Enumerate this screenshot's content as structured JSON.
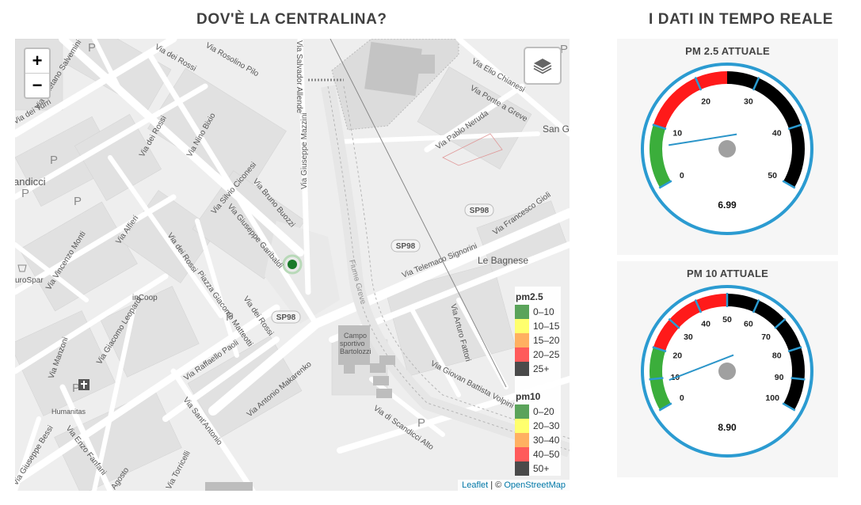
{
  "headings": {
    "map": "DOV'È LA CENTRALINA?",
    "gauges": "I DATI IN TEMPO REALE"
  },
  "map": {
    "zoom_in": "+",
    "zoom_out": "−",
    "attribution": {
      "leaflet": "Leaflet",
      "sep": " | © ",
      "osm": "OpenStreetMap"
    },
    "station_marker_color": "#1a7a2a",
    "labels": {
      "via_rossi_top": "Via dei Rossi",
      "via_rosolino": "Via Rosolino Pilo",
      "via_allende": "Via Salvador Allende",
      "via_salvemini": "Via Gaetano Salvemini",
      "via_turri": "Via dei Turri",
      "via_rossi_2": "Via dei Rossi",
      "via_bixio": "Via Nino Bixio",
      "via_mazzini": "Via Giuseppe Mazzini",
      "scandicci": "andicci",
      "via_ciconesi": "Via Silvio Ciconesi",
      "via_buozzi": "Via Bruno Buozzi",
      "via_garibaldi": "Via Giuseppe Garibaldi",
      "via_alfieri": "Via Alfieri",
      "via_monti": "Via Vincenzo Monti",
      "via_rossi_3": "Via dei Rossi",
      "piazza_matteotti": "Piazza Giacomo Matteotti",
      "via_rossi_4": "Via dei Rossi",
      "incoop": "inCoop",
      "eurospar": "uroSpar",
      "via_leopardi": "Via Giacomo Leopardi",
      "via_manzoni": "Via Manzoni",
      "via_paoli": "Via Raffaello Paoli",
      "via_makarenko": "Via Antonio Makarenko",
      "via_santantonio": "Via Sant'Antonio",
      "via_fanfani": "Via Enzo Fanfani",
      "via_bessi": "Via Giuseppe Bessi",
      "humanitas": "Humanitas",
      "agosto": "Agosto",
      "via_torricelli": "Via Torricelli",
      "via_chianesi": "Via Elio Chianesi",
      "via_ponte_greve": "Via Ponte a Greve",
      "via_neruda": "Via Pablo Neruda",
      "san_g": "San G",
      "via_gioli": "Via Francesco Gioli",
      "le_bagnese": "Le Bagnese",
      "via_signorini": "Via Telemaco Signorini",
      "fiume_greve": "Fiume Greve",
      "via_fattori": "Via Arturo Fattori",
      "via_volpini": "Via Giovan Battista Volpini",
      "via_scandicci_alto": "Via di Scandicci Alto",
      "campo_1": "Campo",
      "campo_2": "sportivo",
      "campo_3": "Bartolozzi",
      "sp98_a": "SP98",
      "sp98_b": "SP98",
      "sp98_c": "SP98",
      "p": "P"
    },
    "legend": {
      "pm25": {
        "title": "pm2.5",
        "rows": [
          {
            "label": "0–10",
            "color": "#5aa35a"
          },
          {
            "label": "10–15",
            "color": "#ffff6e"
          },
          {
            "label": "15–20",
            "color": "#ffb061"
          },
          {
            "label": "20–25",
            "color": "#ff5a5a"
          },
          {
            "label": "25+",
            "color": "#4a4a4a"
          }
        ]
      },
      "pm10": {
        "title": "pm10",
        "rows": [
          {
            "label": "0–20",
            "color": "#5aa35a"
          },
          {
            "label": "20–30",
            "color": "#ffff6e"
          },
          {
            "label": "30–40",
            "color": "#ffb061"
          },
          {
            "label": "40–50",
            "color": "#ff5a5a"
          },
          {
            "label": "50+",
            "color": "#4a4a4a"
          }
        ]
      }
    }
  },
  "gauges": [
    {
      "title": "PM 2.5 ATTUALE",
      "min": 0,
      "max": 50,
      "ticks": [
        0,
        10,
        20,
        30,
        40,
        50
      ],
      "value": 6.99,
      "value_label": "6.99",
      "bands": [
        {
          "from": 0,
          "to": 10,
          "color": "#3bae3b"
        },
        {
          "from": 10,
          "to": 25,
          "color": "#ff1a1a"
        },
        {
          "from": 25,
          "to": 50,
          "color": "#000000"
        }
      ],
      "needle_color": "#2b95c9",
      "ring_color": "#2b9bd1"
    },
    {
      "title": "PM 10 ATTUALE",
      "min": 0,
      "max": 100,
      "ticks": [
        0,
        10,
        20,
        30,
        40,
        50,
        60,
        70,
        80,
        90,
        100
      ],
      "value": 8.9,
      "value_label": "8.90",
      "bands": [
        {
          "from": 0,
          "to": 20,
          "color": "#3bae3b"
        },
        {
          "from": 20,
          "to": 50,
          "color": "#ff1a1a"
        },
        {
          "from": 50,
          "to": 100,
          "color": "#000000"
        }
      ],
      "needle_color": "#2b95c9",
      "ring_color": "#2b9bd1"
    }
  ]
}
